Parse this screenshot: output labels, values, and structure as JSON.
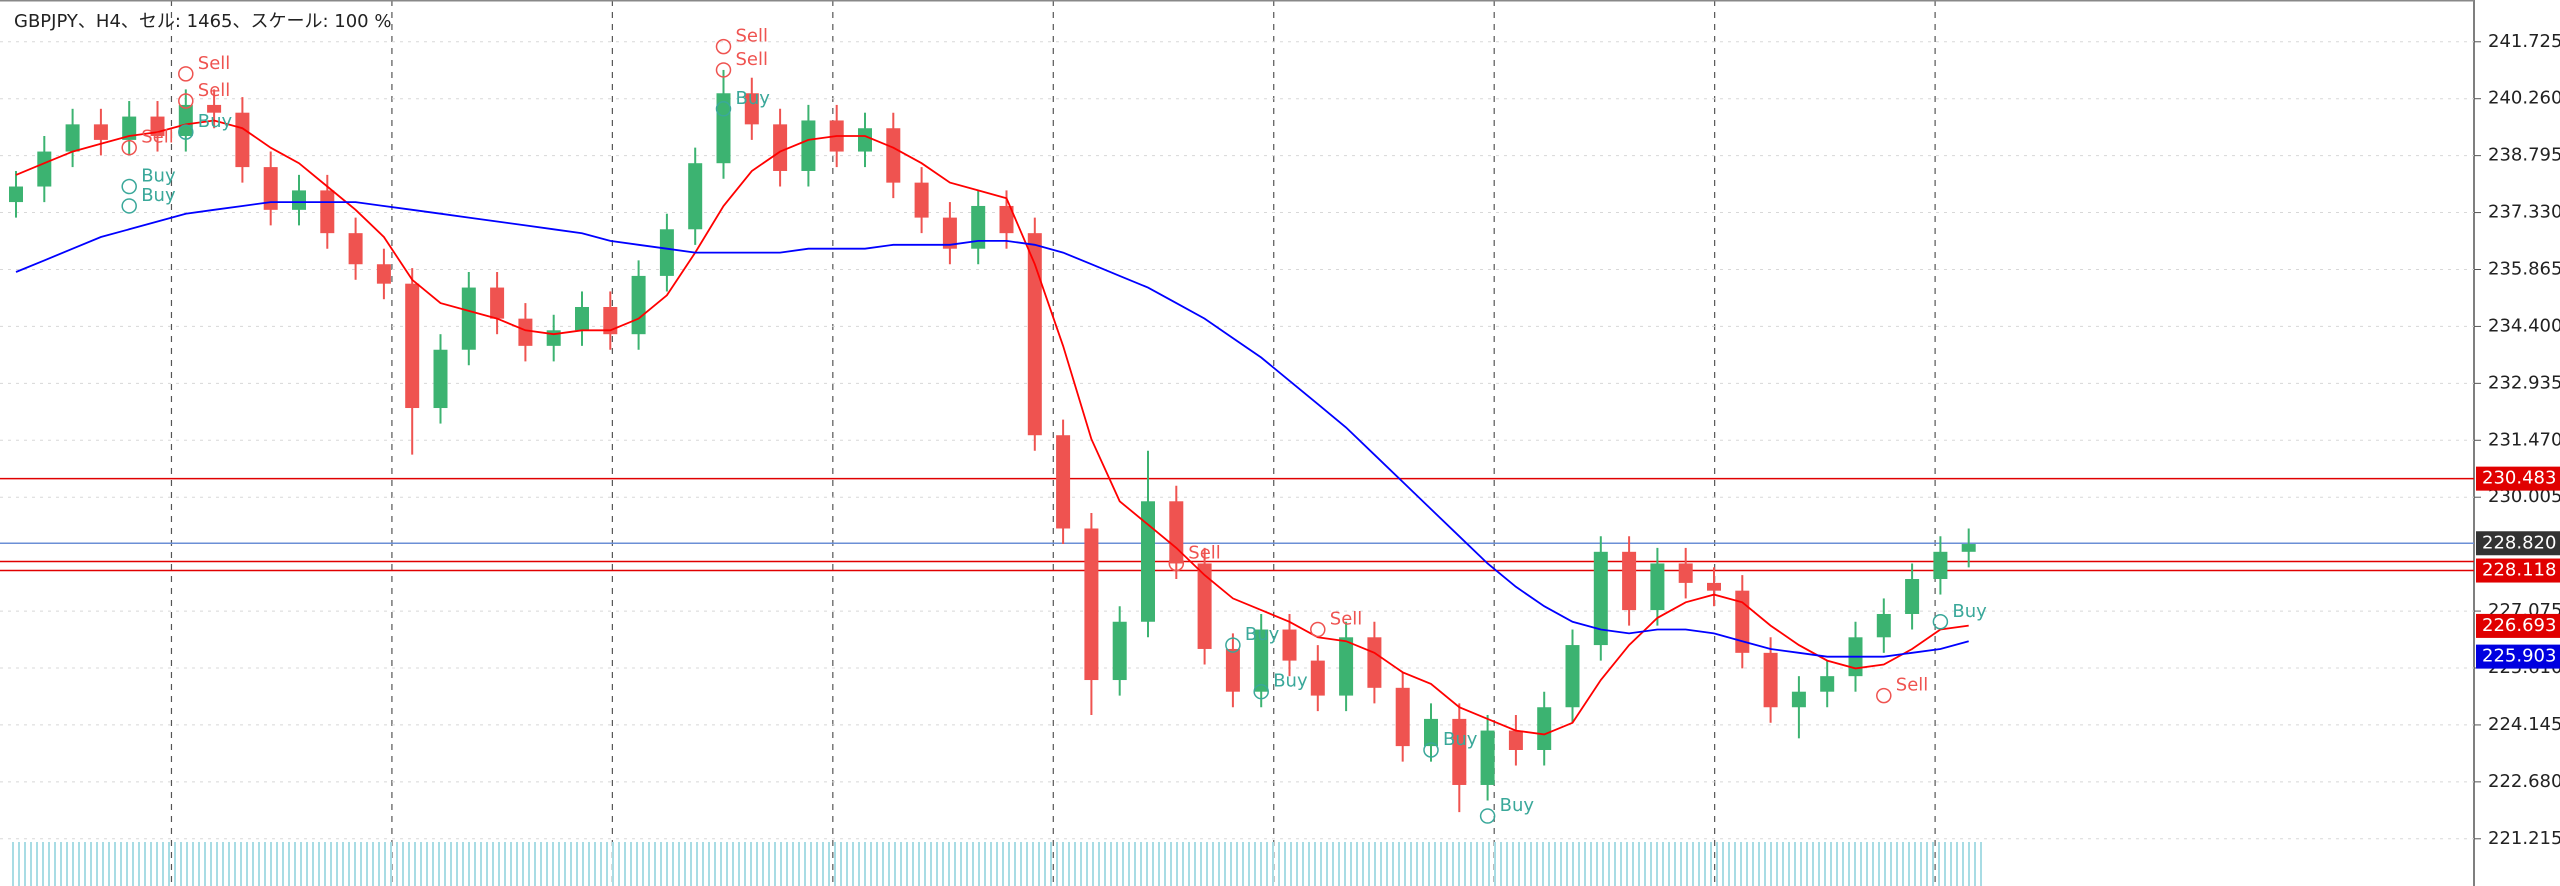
{
  "header": {
    "title": "GBPJPY、H4、セル: 1465、スケール: 100 %"
  },
  "chart_data": {
    "type": "candlestick",
    "ylim": [
      220.0,
      242.8
    ],
    "yticks": [
      241.725,
      {
        "value": 240.26,
        "label": "240.260"
      },
      238.795,
      {
        "value": 237.33,
        "label": "237.330"
      },
      235.865,
      {
        "value": 234.4,
        "label": "234.400"
      },
      232.935,
      {
        "value": 231.47,
        "label": "231.470"
      },
      230.005,
      227.075,
      {
        "value": 225.61,
        "label": "225.610"
      },
      224.145,
      {
        "value": 222.68,
        "label": "222.680"
      },
      221.215
    ],
    "grid": true,
    "up_color": "#3cb371",
    "down_color": "#ef5350",
    "open": [
      237.6,
      238.0,
      238.9,
      239.6,
      239.2,
      239.8,
      239.3,
      240.1,
      239.9,
      238.5,
      237.4,
      237.9,
      236.8,
      236.0,
      235.5,
      232.3,
      233.8,
      235.4,
      234.6,
      233.9,
      234.3,
      234.9,
      234.2,
      235.7,
      236.9,
      238.6,
      240.4,
      239.6,
      238.4,
      239.7,
      238.9,
      239.5,
      238.1,
      237.2,
      236.4,
      237.5,
      236.8,
      231.6,
      229.2,
      225.3,
      226.8,
      229.9,
      228.3,
      226.1,
      225.0,
      226.6,
      225.8,
      224.9,
      226.4,
      225.1,
      223.6,
      224.3,
      222.6,
      224.0,
      223.5,
      224.6,
      226.2,
      228.6,
      227.1,
      228.3,
      227.8,
      227.6,
      226.0,
      224.6,
      225.0,
      225.4,
      226.4,
      227.0,
      227.9,
      228.6
    ],
    "high": [
      238.4,
      239.3,
      240.0,
      240.0,
      240.2,
      240.2,
      240.5,
      240.5,
      240.3,
      238.9,
      238.3,
      238.3,
      237.2,
      236.4,
      235.9,
      234.2,
      235.8,
      235.8,
      235.0,
      234.7,
      235.3,
      235.3,
      236.1,
      237.3,
      239.0,
      241.0,
      240.8,
      240.0,
      240.1,
      240.1,
      239.9,
      239.9,
      238.5,
      237.6,
      237.9,
      237.9,
      237.2,
      232.0,
      229.6,
      227.2,
      231.2,
      230.3,
      228.7,
      226.5,
      227.0,
      227.0,
      226.2,
      226.8,
      226.8,
      225.5,
      224.7,
      224.7,
      224.4,
      224.4,
      225.0,
      226.6,
      229.0,
      229.0,
      228.7,
      228.7,
      228.2,
      228.0,
      226.4,
      225.4,
      225.8,
      226.8,
      227.4,
      228.3,
      229.0,
      229.2
    ],
    "low": [
      237.2,
      237.6,
      238.5,
      238.8,
      238.8,
      238.9,
      238.9,
      239.5,
      238.1,
      237.0,
      237.0,
      236.4,
      235.6,
      235.1,
      231.1,
      231.9,
      233.4,
      234.2,
      233.5,
      233.5,
      233.9,
      233.8,
      233.8,
      235.3,
      236.5,
      238.2,
      239.2,
      238.0,
      238.0,
      238.5,
      238.5,
      237.7,
      236.8,
      236.0,
      236.0,
      236.4,
      231.2,
      228.8,
      224.4,
      224.9,
      226.4,
      227.9,
      225.7,
      224.6,
      224.6,
      225.4,
      224.5,
      224.5,
      224.7,
      223.2,
      223.2,
      221.9,
      222.2,
      223.1,
      223.1,
      224.2,
      225.8,
      226.7,
      226.7,
      227.4,
      227.2,
      225.6,
      224.2,
      223.8,
      224.6,
      225.0,
      226.0,
      226.6,
      227.5,
      228.2
    ],
    "close": [
      238.0,
      238.9,
      239.6,
      239.2,
      239.8,
      239.3,
      240.1,
      239.9,
      238.5,
      237.4,
      237.9,
      236.8,
      236.0,
      235.5,
      232.3,
      233.8,
      235.4,
      234.6,
      233.9,
      234.3,
      234.9,
      234.2,
      235.7,
      236.9,
      238.6,
      240.4,
      239.6,
      238.4,
      239.7,
      238.9,
      239.5,
      238.1,
      237.2,
      236.4,
      237.5,
      236.8,
      231.6,
      229.2,
      225.3,
      226.8,
      229.9,
      228.3,
      226.1,
      225.0,
      226.6,
      225.8,
      224.9,
      226.4,
      225.1,
      223.6,
      224.3,
      222.6,
      224.0,
      223.5,
      224.6,
      226.2,
      228.6,
      227.1,
      228.3,
      227.8,
      227.6,
      226.0,
      224.6,
      225.0,
      225.4,
      226.4,
      227.0,
      227.9,
      228.6,
      228.8
    ],
    "lines": [
      {
        "color": "#ff0000",
        "values": [
          238.3,
          238.6,
          238.9,
          239.1,
          239.3,
          239.4,
          239.6,
          239.7,
          239.5,
          239.0,
          238.6,
          238.0,
          237.4,
          236.7,
          235.6,
          235.0,
          234.8,
          234.6,
          234.3,
          234.2,
          234.3,
          234.3,
          234.6,
          235.2,
          236.3,
          237.5,
          238.4,
          238.9,
          239.2,
          239.3,
          239.3,
          239.0,
          238.6,
          238.1,
          237.9,
          237.7,
          236.0,
          233.9,
          231.5,
          229.9,
          229.3,
          228.7,
          228.0,
          227.4,
          227.1,
          226.8,
          226.4,
          226.3,
          226.0,
          225.5,
          225.2,
          224.6,
          224.3,
          224.0,
          223.9,
          224.2,
          225.3,
          226.2,
          226.9,
          227.3,
          227.5,
          227.3,
          226.7,
          226.2,
          225.8,
          225.6,
          225.7,
          226.1,
          226.6,
          226.7
        ]
      },
      {
        "color": "#0000ff",
        "values": [
          235.8,
          236.1,
          236.4,
          236.7,
          236.9,
          237.1,
          237.3,
          237.4,
          237.5,
          237.6,
          237.6,
          237.6,
          237.6,
          237.5,
          237.4,
          237.3,
          237.2,
          237.1,
          237.0,
          236.9,
          236.8,
          236.6,
          236.5,
          236.4,
          236.3,
          236.3,
          236.3,
          236.3,
          236.4,
          236.4,
          236.4,
          236.5,
          236.5,
          236.5,
          236.6,
          236.6,
          236.5,
          236.3,
          236.0,
          235.7,
          235.4,
          235.0,
          234.6,
          234.1,
          233.6,
          233.0,
          232.4,
          231.8,
          231.1,
          230.4,
          229.7,
          229.0,
          228.3,
          227.7,
          227.2,
          226.8,
          226.6,
          226.5,
          226.6,
          226.6,
          226.5,
          226.3,
          226.1,
          226.0,
          225.9,
          225.9,
          225.9,
          226.0,
          226.1,
          226.3
        ]
      }
    ],
    "levels": [
      {
        "value": 230.483,
        "color": "#e00000",
        "tag": "#e00000"
      },
      {
        "value": 228.82,
        "label": "228.820",
        "color": "#6b8fd6",
        "tag": "#333333"
      },
      {
        "value": 228.35,
        "color": "#e00000"
      },
      {
        "value": 228.118,
        "color": "#e00000",
        "tag": "#e00000"
      }
    ],
    "tags": [
      {
        "value": 226.693,
        "color": "#e00000"
      },
      {
        "value": 225.903,
        "color": "#0000e0"
      }
    ],
    "signals": [
      {
        "text": "Sell",
        "x": 6,
        "y": 240.9,
        "color": "#ef5350"
      },
      {
        "text": "Sell",
        "x": 6,
        "y": 240.2,
        "color": "#ef5350"
      },
      {
        "text": "Buy",
        "x": 6,
        "y": 239.4,
        "color": "#3aa89a"
      },
      {
        "text": "Sell",
        "x": 4,
        "y": 239.0,
        "color": "#ef5350"
      },
      {
        "text": "Buy",
        "x": 4,
        "y": 238.0,
        "color": "#3aa89a"
      },
      {
        "text": "Buy",
        "x": 4,
        "y": 237.5,
        "color": "#3aa89a"
      },
      {
        "text": "Sell",
        "x": 25,
        "y": 241.6,
        "color": "#ef5350"
      },
      {
        "text": "Sell",
        "x": 25,
        "y": 241.0,
        "color": "#ef5350"
      },
      {
        "text": "Buy",
        "x": 25,
        "y": 240.0,
        "color": "#3aa89a"
      },
      {
        "text": "Sell",
        "x": 41,
        "y": 228.3,
        "color": "#ef5350"
      },
      {
        "text": "Buy",
        "x": 43,
        "y": 226.2,
        "color": "#3aa89a"
      },
      {
        "text": "Buy",
        "x": 44,
        "y": 225.0,
        "color": "#3aa89a"
      },
      {
        "text": "Sell",
        "x": 46,
        "y": 226.6,
        "color": "#ef5350"
      },
      {
        "text": "Buy",
        "x": 50,
        "y": 223.5,
        "color": "#3aa89a"
      },
      {
        "text": "Buy",
        "x": 52,
        "y": 221.8,
        "color": "#3aa89a"
      },
      {
        "text": "Sell",
        "x": 66,
        "y": 224.9,
        "color": "#ef5350"
      },
      {
        "text": "Buy",
        "x": 68,
        "y": 226.8,
        "color": "#3aa89a"
      }
    ]
  }
}
